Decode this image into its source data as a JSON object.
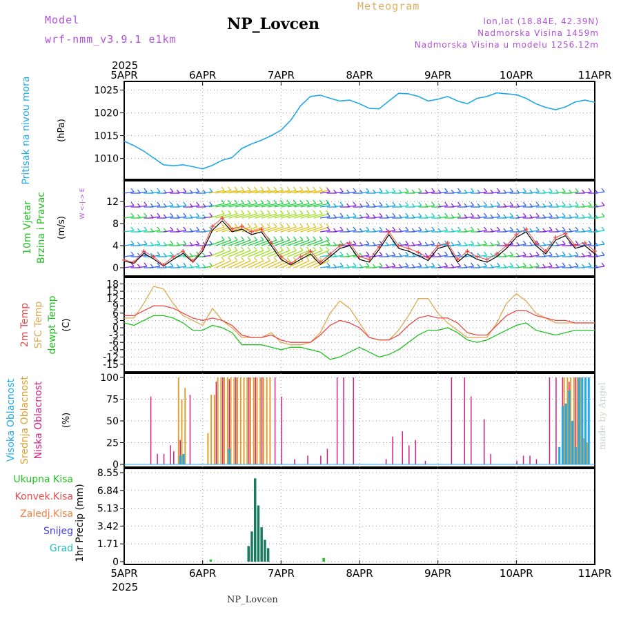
{
  "header": {
    "model_label": "Model",
    "model_name": "wrf-nmm_v3.9.1 e1km",
    "title": "NP_Lovcen",
    "product": "Meteogram",
    "coords": "lon,lat (18.84E, 42.39N)",
    "altitude": "Nadmorska Visina 1459m",
    "model_altitude": "Nadmorska Visina u modelu 1256.12m",
    "footer": "NP_Lovcen",
    "credit": "made by Angel"
  },
  "colors": {
    "purple": "#b04fd8",
    "gold": "#e0b060",
    "pressure": "#1fa8e8",
    "temp2m": "#e84848",
    "sfc": "#e0a850",
    "dewpt": "#20c020",
    "high_cloud": "#20a8f0",
    "mid_cloud": "#e0a030",
    "low_cloud": "#d02080",
    "precip": "#1a7a60",
    "credit": "#c8d8c8"
  },
  "time_axis": {
    "year": "2025",
    "labels": [
      "5APR",
      "6APR",
      "7APR",
      "8APR",
      "9APR",
      "10APR",
      "11APR"
    ]
  },
  "chart_data": [
    {
      "type": "line",
      "panel": "pressure",
      "ylabel_main": "Pritisak na nivou mora",
      "unit": "(hPa)",
      "ylim": [
        1006,
        1026
      ],
      "yticks": [
        "1010",
        "1015",
        "1020",
        "1025"
      ],
      "x_hours": [
        0,
        3,
        6,
        9,
        12,
        15,
        18,
        21,
        24,
        27,
        30,
        33,
        36,
        39,
        42,
        45,
        48,
        51,
        54,
        57,
        60,
        63,
        66,
        69,
        72,
        75,
        78,
        81,
        84,
        87,
        90,
        93,
        96,
        99,
        102,
        105,
        108,
        111,
        114,
        117,
        120,
        123,
        126,
        129,
        132,
        135,
        138,
        141,
        144
      ],
      "series": [
        {
          "values": [
            1013.8,
            1012.8,
            1011.6,
            1010.1,
            1008.6,
            1008.4,
            1008.6,
            1008.2,
            1007.7,
            1008.5,
            1009.6,
            1010.2,
            1012.2,
            1013.2,
            1014.0,
            1015.0,
            1016.2,
            1018.4,
            1021.6,
            1023.6,
            1023.9,
            1023.2,
            1022.6,
            1022.8,
            1022.0,
            1021.0,
            1020.9,
            1022.6,
            1024.3,
            1024.2,
            1023.6,
            1022.6,
            1023.0,
            1023.6,
            1022.6,
            1022.0,
            1023.2,
            1023.6,
            1024.4,
            1024.2,
            1024.0,
            1023.2,
            1022.0,
            1021.2,
            1020.7,
            1021.3,
            1022.4,
            1022.8,
            1022.3
          ]
        }
      ],
      "grid": true
    },
    {
      "type": "line",
      "panel": "wind",
      "ylabel_main": "10m Vjetar",
      "ylabel_sub": "Brzina i Pravac",
      "unit": "(m/s)",
      "compass": "W <-|-> E",
      "ylim": [
        -1,
        15
      ],
      "yticks": [
        "0",
        "4",
        "8",
        "12"
      ],
      "x_hours": [
        0,
        3,
        6,
        9,
        12,
        15,
        18,
        21,
        24,
        27,
        30,
        33,
        36,
        39,
        42,
        45,
        48,
        51,
        54,
        57,
        60,
        63,
        66,
        69,
        72,
        75,
        78,
        81,
        84,
        87,
        90,
        93,
        96,
        99,
        102,
        105,
        108,
        111,
        114,
        117,
        120,
        123,
        126,
        129,
        132,
        135,
        138,
        141,
        144
      ],
      "series": [
        {
          "values": [
            1.4,
            1.0,
            3.0,
            2.0,
            0.5,
            2.0,
            3.0,
            1.2,
            3.5,
            7.5,
            9.0,
            7.0,
            7.5,
            6.5,
            7.0,
            4.5,
            2.0,
            0.8,
            2.0,
            3.0,
            1.0,
            2.5,
            4.0,
            4.5,
            2.0,
            1.5,
            3.8,
            6.5,
            4.0,
            3.5,
            2.8,
            1.8,
            4.0,
            4.5,
            1.5,
            3.0,
            2.0,
            1.5,
            2.5,
            4.0,
            6.0,
            7.0,
            4.5,
            3.0,
            5.5,
            6.2,
            4.0,
            4.5,
            3.0
          ]
        },
        {
          "values": [
            1.2,
            0.8,
            2.6,
            1.6,
            0.3,
            1.5,
            2.6,
            1.0,
            3.0,
            6.8,
            8.5,
            6.5,
            7.0,
            6.0,
            6.5,
            4.0,
            1.5,
            0.5,
            1.5,
            2.5,
            0.6,
            2.0,
            3.5,
            4.0,
            1.5,
            1.0,
            3.3,
            6.0,
            3.5,
            3.0,
            2.2,
            1.3,
            3.5,
            4.0,
            1.0,
            2.5,
            1.5,
            1.0,
            2.0,
            3.5,
            5.5,
            6.5,
            4.0,
            2.5,
            5.0,
            5.8,
            3.5,
            4.0,
            2.5
          ]
        }
      ],
      "grid": true
    },
    {
      "type": "line",
      "panel": "temperature",
      "ylabel_main": "2m Temp",
      "ylabel_sub": "SFC Temp",
      "ylabel_sub2": "dewpt Temp",
      "unit": "(C)",
      "ylim": [
        -17,
        19
      ],
      "yticks": [
        "18",
        "15",
        "12",
        "9",
        "6",
        "3",
        "0",
        "-3",
        "-6",
        "-9",
        "-12",
        "-15"
      ],
      "x_hours": [
        0,
        3,
        6,
        9,
        12,
        15,
        18,
        21,
        24,
        27,
        30,
        33,
        36,
        39,
        42,
        45,
        48,
        51,
        54,
        57,
        60,
        63,
        66,
        69,
        72,
        75,
        78,
        81,
        84,
        87,
        90,
        93,
        96,
        99,
        102,
        105,
        108,
        111,
        114,
        117,
        120,
        123,
        126,
        129,
        132,
        135,
        138,
        141,
        144
      ],
      "series": [
        {
          "values": [
            5,
            5,
            7,
            9,
            9,
            8,
            6,
            4,
            3,
            4,
            3,
            1,
            -3,
            -4,
            -4,
            -3,
            -5,
            -6,
            -6,
            -6,
            -3,
            1,
            3,
            2,
            0,
            -4,
            -5,
            -5,
            -3,
            1,
            4,
            5,
            4,
            4,
            2,
            -2,
            -3,
            -3,
            1,
            5,
            7,
            7,
            5,
            4,
            3,
            3,
            2,
            2,
            2
          ]
        },
        {
          "values": [
            4,
            4,
            10,
            17,
            16,
            10,
            5,
            3,
            1,
            8,
            3,
            0,
            -4,
            -4,
            -4,
            -2,
            -6,
            -7,
            -7,
            -6,
            -2,
            6,
            11,
            8,
            2,
            -4,
            -5,
            -5,
            -1,
            5,
            12,
            12,
            6,
            2,
            -1,
            -4,
            -4,
            -4,
            2,
            10,
            14,
            11,
            6,
            4,
            2,
            2,
            2,
            2,
            2
          ]
        },
        {
          "values": [
            2,
            1,
            3,
            5,
            5,
            4,
            2,
            -1,
            -1,
            1,
            0,
            -2,
            -7,
            -7,
            -7,
            -8,
            -9,
            -8,
            -8,
            -9,
            -10,
            -13,
            -12,
            -10,
            -8,
            -10,
            -12,
            -11,
            -9,
            -6,
            -3,
            -1,
            -1,
            0,
            -2,
            -5,
            -6,
            -5,
            -3,
            -1,
            1,
            2,
            -1,
            -2,
            -3,
            -2,
            -1,
            -1,
            -1
          ]
        }
      ],
      "grid": true
    },
    {
      "type": "bar",
      "panel": "clouds",
      "ylabel_main": "Visoka Oblacnost",
      "ylabel_sub": "Srednja Oblacnost",
      "ylabel_sub2": "Niska Oblacnost",
      "unit": "(%)",
      "ylim": [
        0,
        100
      ],
      "yticks": [
        "0",
        "25",
        "50",
        "75",
        "100"
      ],
      "series": [
        {
          "kind": "low",
          "x_hours": [
            8,
            10,
            12,
            14,
            15,
            17,
            20,
            28,
            30,
            32,
            34,
            38,
            40,
            42,
            46,
            48,
            52,
            56,
            60,
            62,
            65,
            67,
            70,
            80,
            82,
            85,
            87,
            89,
            92,
            100,
            104,
            106,
            110,
            112,
            120,
            122,
            124,
            126,
            130,
            132,
            134,
            136,
            138,
            140,
            142
          ],
          "values": [
            78,
            12,
            12,
            22,
            15,
            28,
            80,
            95,
            100,
            98,
            100,
            100,
            100,
            100,
            100,
            78,
            6,
            10,
            10,
            18,
            100,
            100,
            100,
            6,
            32,
            38,
            22,
            28,
            4,
            100,
            100,
            78,
            52,
            12,
            4,
            10,
            10,
            6,
            100,
            100,
            100,
            95,
            100,
            62,
            30
          ]
        },
        {
          "kind": "mid",
          "x_hours": [
            16,
            17,
            18,
            25,
            26,
            27,
            28,
            29,
            30,
            31,
            32,
            33,
            34,
            35,
            36,
            37,
            38,
            39,
            40,
            41,
            42,
            43,
            44,
            134,
            135,
            136,
            137,
            138,
            139,
            140,
            141
          ],
          "values": [
            100,
            75,
            88,
            36,
            80,
            80,
            100,
            100,
            100,
            100,
            100,
            100,
            100,
            100,
            100,
            100,
            100,
            100,
            100,
            100,
            100,
            100,
            100,
            100,
            100,
            100,
            100,
            100,
            100,
            30,
            25
          ]
        },
        {
          "kind": "high",
          "x_hours": [
            16,
            17,
            31,
            132,
            133,
            134,
            135,
            136,
            137,
            138,
            139,
            140,
            141
          ],
          "values": [
            10,
            12,
            18,
            20,
            67,
            70,
            85,
            50,
            20,
            100,
            100,
            100,
            100
          ]
        }
      ],
      "grid": true
    },
    {
      "type": "bar",
      "panel": "precipitation",
      "ylabel_main": "1hr Precip",
      "unit": "(mm)",
      "legend": [
        "Ukupna Kisa",
        "Konvek.Kisa",
        "Zaledj.Kisa",
        "Snijeg",
        "Grad"
      ],
      "ylim": [
        0,
        8.55
      ],
      "yticks": [
        "0",
        "1.71",
        "3.42",
        "5.13",
        "6.84",
        "8.55"
      ],
      "x_hours": [
        26.4,
        38,
        39,
        40,
        41,
        42,
        43,
        44,
        61
      ],
      "values": [
        0.2,
        1.5,
        2.9,
        8.0,
        5.4,
        3.3,
        2.1,
        1.3,
        0.35
      ],
      "grid": true
    }
  ]
}
